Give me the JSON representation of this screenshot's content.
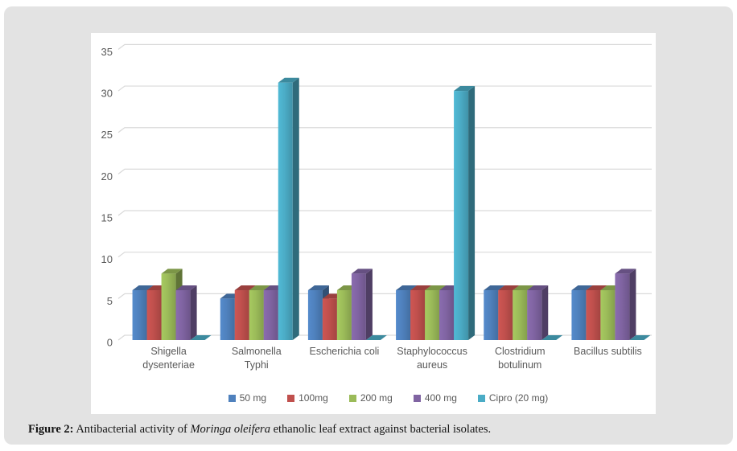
{
  "figure_caption": {
    "figure_label": "Figure 2:",
    "before_italic": " Antibacterial activity of ",
    "italic": "Moringa oleifera",
    "after_italic": " ethanolic leaf extract against bacterial isolates."
  },
  "chart_data": {
    "type": "bar",
    "style": "3d-clustered-column",
    "title": "",
    "xlabel": "",
    "ylabel": "",
    "categories": [
      "Shigella dysenteriae",
      "Salmonella Typhi",
      "Escherichia coli",
      "Staphylococcus aureus",
      "Clostridium botulinum",
      "Bacillus subtilis"
    ],
    "category_label_lines": [
      [
        "Shigella",
        "dysenteriae"
      ],
      [
        "Salmonella",
        "Typhi"
      ],
      [
        "Escherichia coli"
      ],
      [
        "Staphylococcus",
        "aureus"
      ],
      [
        "Clostridium",
        "botulinum"
      ],
      [
        "Bacillus subtilis"
      ]
    ],
    "series": [
      {
        "name": "50 mg",
        "color": "#4F81BD",
        "values": [
          6,
          5,
          6,
          6,
          6,
          6
        ]
      },
      {
        "name": "100mg",
        "color": "#C0504D",
        "values": [
          6,
          6,
          5,
          6,
          6,
          6
        ]
      },
      {
        "name": "200 mg",
        "color": "#9BBB59",
        "values": [
          8,
          6,
          6,
          6,
          6,
          6
        ]
      },
      {
        "name": "400 mg",
        "color": "#8064A2",
        "values": [
          6,
          6,
          8,
          6,
          6,
          8
        ]
      },
      {
        "name": "Cipro (20 mg)",
        "color": "#4BACC6",
        "values": [
          0,
          31,
          0,
          30,
          0,
          0
        ]
      }
    ],
    "ylim": [
      0,
      35
    ],
    "yticks": [
      0,
      5,
      10,
      15,
      20,
      25,
      30,
      35
    ],
    "grid": true,
    "legend_position": "bottom",
    "axis_text_color": "#595959",
    "gridline_color": "#d9d9d9",
    "plot_background": "#ffffff",
    "panel_background": "#e3e3e3"
  }
}
